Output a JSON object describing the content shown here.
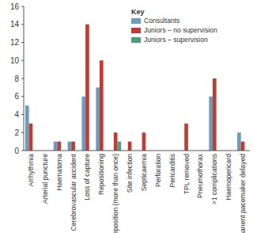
{
  "chart_data": {
    "type": "bar",
    "categories": [
      "Arrhythmia",
      "Arterial puncture",
      "Haematoma",
      "Cerebrovascular accident",
      "Loss of capture",
      "Repositioning",
      "Reposition (more than once)",
      "Site infection",
      "Septicaemia",
      "Perforation",
      "Pericarditis",
      "TPL removed",
      "Pneumothorax",
      ">1 complications",
      "Haemopericard",
      "Permanent pacemaker delayed"
    ],
    "series": [
      {
        "name": "Consultants",
        "color": "#6a9cc0",
        "values": [
          5,
          0,
          1,
          1,
          6,
          7,
          0,
          0,
          0,
          0,
          0,
          0,
          0,
          6,
          0,
          2
        ]
      },
      {
        "name": "Juniors – no supervision",
        "color": "#c43a2e",
        "values": [
          3,
          0,
          1,
          1,
          14,
          10,
          2,
          1,
          2,
          0,
          0,
          3,
          0,
          8,
          0,
          1
        ]
      },
      {
        "name": "Juniors – supervision",
        "color": "#4a9e7c",
        "values": [
          0,
          0,
          0,
          0,
          0,
          0,
          1,
          0,
          0,
          0,
          0,
          0,
          0,
          0,
          0,
          0
        ]
      }
    ],
    "ylim": [
      0,
      16
    ],
    "yticks": [
      0,
      2,
      4,
      6,
      8,
      10,
      12,
      14,
      16
    ],
    "grid": false,
    "legend": "top-right",
    "legend_title": "Key"
  }
}
